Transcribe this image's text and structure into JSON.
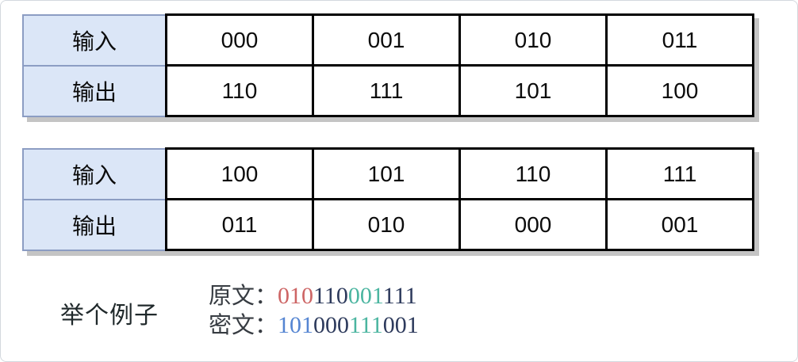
{
  "tables": [
    {
      "rows": [
        {
          "header": "输入",
          "cells": [
            "000",
            "001",
            "010",
            "011"
          ]
        },
        {
          "header": "输出",
          "cells": [
            "110",
            "111",
            "101",
            "100"
          ]
        }
      ]
    },
    {
      "rows": [
        {
          "header": "输入",
          "cells": [
            "100",
            "101",
            "110",
            "111"
          ]
        },
        {
          "header": "输出",
          "cells": [
            "011",
            "010",
            "000",
            "001"
          ]
        }
      ]
    }
  ],
  "example": {
    "label": "举个例子",
    "lines": [
      {
        "label": "原文：",
        "groups": [
          {
            "text": "010",
            "color": "#cd6565"
          },
          {
            "text": "110",
            "color": "#2d3a5c"
          },
          {
            "text": "001",
            "color": "#4bb5a0"
          },
          {
            "text": "111",
            "color": "#2d3a5c"
          }
        ]
      },
      {
        "label": "密文：",
        "groups": [
          {
            "text": "101",
            "color": "#5585d2"
          },
          {
            "text": "000",
            "color": "#2d3a5c"
          },
          {
            "text": "111",
            "color": "#4bb5a0"
          },
          {
            "text": "001",
            "color": "#2d3a5c"
          }
        ]
      }
    ]
  },
  "colors": {
    "header_fill": "#dbe6f7",
    "header_border": "#8c9dc3",
    "cell_border": "#000000",
    "table_shadow": "#c4c4c4",
    "frame_border": "#d3d8de",
    "red_group": "#cd6565",
    "navy_group": "#2d3a5c",
    "teal_group": "#4bb5a0",
    "blue_group": "#5585d2"
  }
}
